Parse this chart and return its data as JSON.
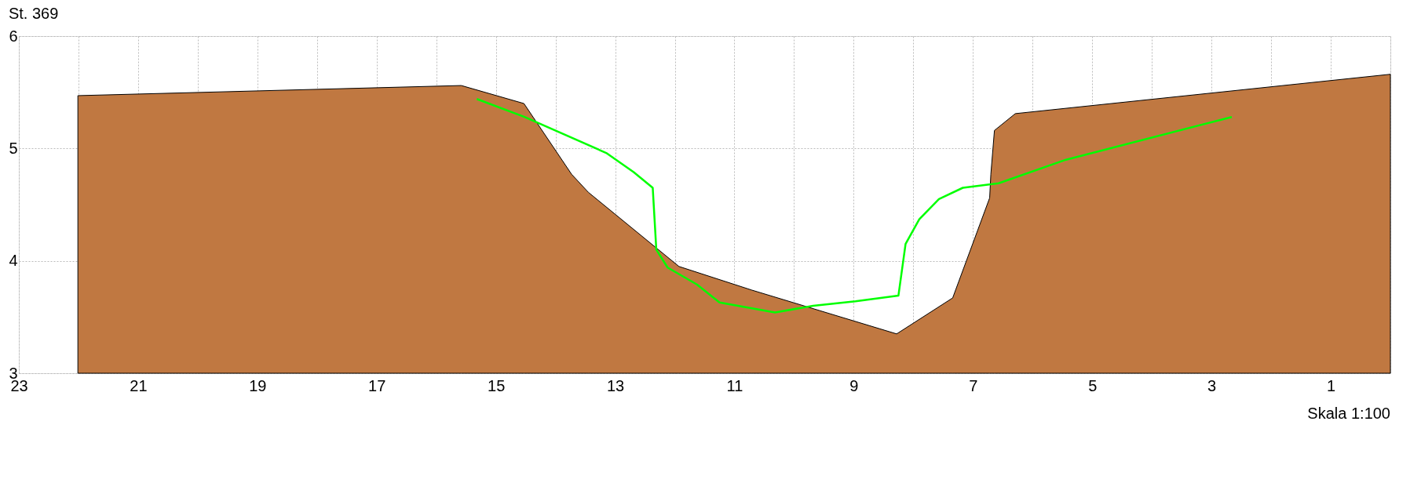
{
  "chart_data": {
    "type": "area",
    "title": "St. 369",
    "annotations": [
      "Skala 1:100"
    ],
    "xlim": [
      23,
      0
    ],
    "ylim": [
      3,
      6
    ],
    "xticks": [
      23,
      {
        "value": 22,
        "label": null
      },
      21,
      {
        "value": 20,
        "label": null
      },
      19,
      {
        "value": 18,
        "label": null
      },
      17,
      {
        "value": 16,
        "label": null
      },
      15,
      {
        "value": 14,
        "label": null
      },
      13,
      {
        "value": 12,
        "label": null
      },
      11,
      {
        "value": 10,
        "label": null
      },
      9,
      {
        "value": 8,
        "label": null
      },
      7,
      {
        "value": 6,
        "label": null
      },
      5,
      {
        "value": 4,
        "label": null
      },
      3,
      {
        "value": 2,
        "label": null
      },
      1,
      {
        "value": 0,
        "label": null
      }
    ],
    "yticks": [
      3,
      4,
      5,
      6
    ],
    "grid": true,
    "series": [
      {
        "color": "#c07841",
        "x": [
          22.01,
          15.58,
          14.53,
          13.73,
          13.45,
          11.93,
          10.71,
          8.28,
          7.34,
          6.72,
          6.7,
          6.64,
          6.29,
          0.0
        ],
        "values": [
          5.47,
          5.56,
          5.4,
          4.77,
          4.61,
          3.95,
          3.74,
          3.35,
          3.67,
          4.56,
          4.77,
          5.16,
          5.31,
          5.66
        ]
      },
      {
        "type": "line",
        "color": "#00ff00",
        "x": [
          15.32,
          14.52,
          13.15,
          12.69,
          12.37,
          12.31,
          12.12,
          11.63,
          11.25,
          10.32,
          9.68,
          8.97,
          8.25,
          8.13,
          7.9,
          7.57,
          7.17,
          6.57,
          5.44,
          2.66
        ],
        "values": [
          5.44,
          5.28,
          4.96,
          4.79,
          4.65,
          4.1,
          3.94,
          3.79,
          3.63,
          3.54,
          3.6,
          3.64,
          3.69,
          4.15,
          4.37,
          4.55,
          4.65,
          4.69,
          4.9,
          5.28
        ]
      }
    ]
  }
}
